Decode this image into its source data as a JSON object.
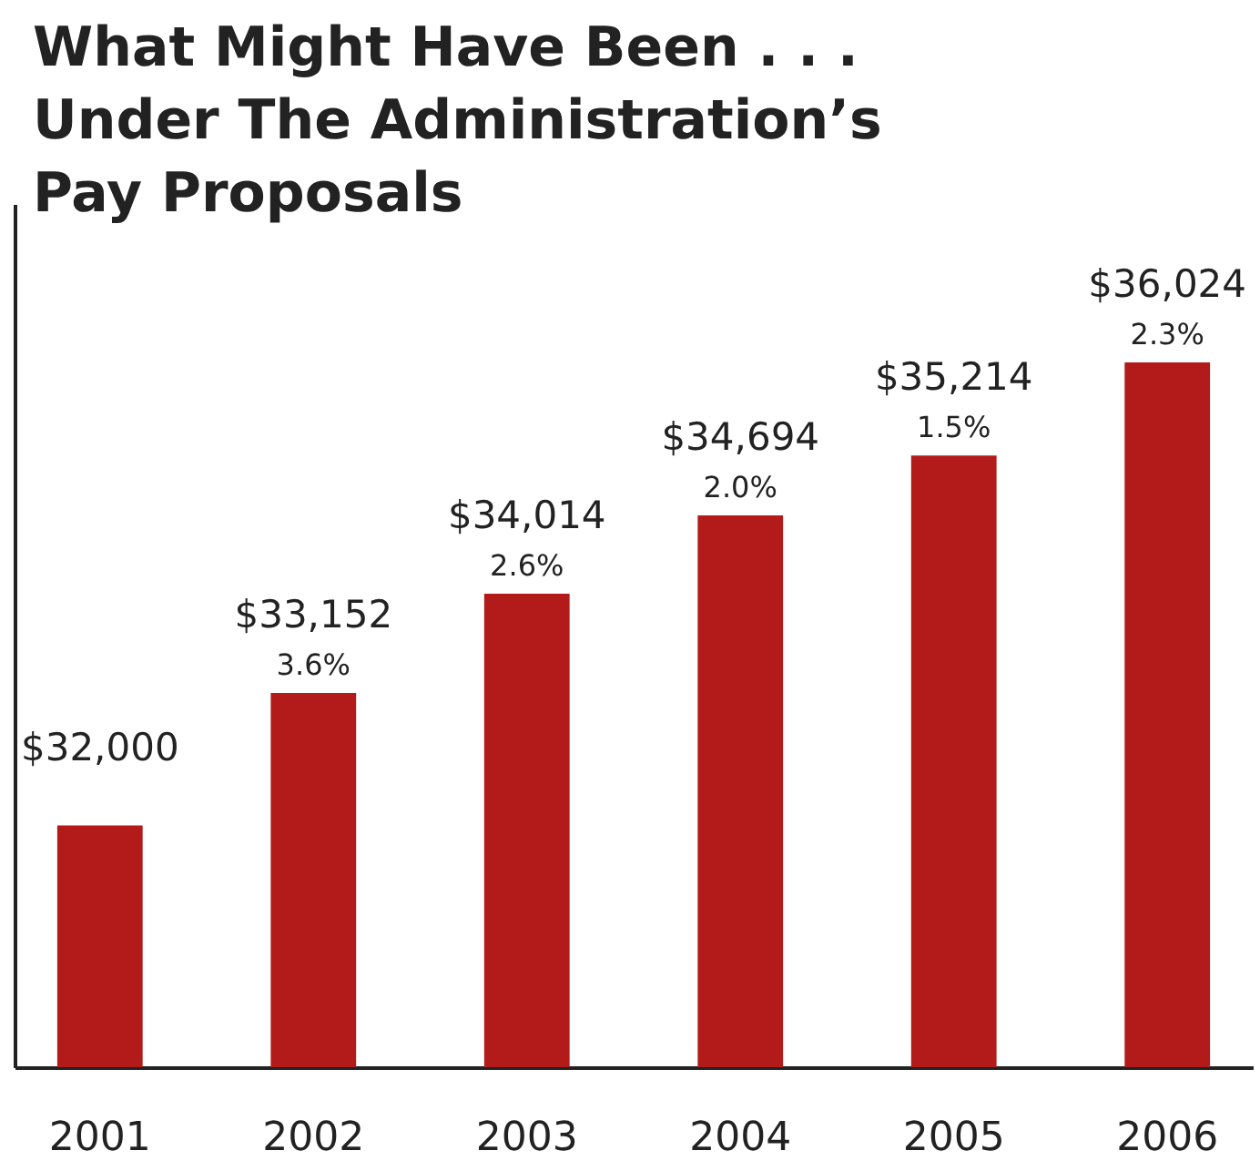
{
  "chart_data": {
    "type": "bar",
    "title": "What Might Have Been . . .\nUnder The Administration’s\nPay Proposals",
    "categories": [
      "2001",
      "2002",
      "2003",
      "2004",
      "2005",
      "2006"
    ],
    "values": [
      32000,
      33152,
      34014,
      34694,
      35214,
      36024
    ],
    "value_labels": [
      "$32,000",
      "$33,152",
      "$34,014",
      "$34,694",
      "$35,214",
      "$36,024"
    ],
    "color": "#b31b1b",
    "ylim": [
      29900,
      37400
    ],
    "tick_labels": "x",
    "grid": false,
    "annotations": [
      {
        "text": "3.6%",
        "x": "2002",
        "y": 33152
      },
      {
        "text": "2.6%",
        "x": "2003",
        "y": 34014
      },
      {
        "text": "2.0%",
        "x": "2004",
        "y": 34694
      },
      {
        "text": "1.5%",
        "x": "2005",
        "y": 35214
      },
      {
        "text": "2.3%",
        "x": "2006",
        "y": 36024
      }
    ]
  }
}
